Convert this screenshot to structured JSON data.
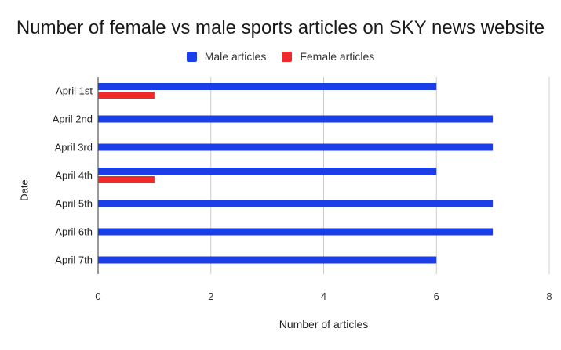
{
  "chart_data": {
    "type": "bar",
    "orientation": "horizontal",
    "title": "Number of female vs male sports articles on SKY news website",
    "xlabel": "Number of articles",
    "ylabel": "Date",
    "categories": [
      "April 1st",
      "April 2nd",
      "April 3rd",
      "April 4th",
      "April 5th",
      "April 6th",
      "April 7th"
    ],
    "series": [
      {
        "name": "Male articles",
        "color": "#1a3ee8",
        "values": [
          6,
          7,
          7,
          6,
          7,
          7,
          6
        ]
      },
      {
        "name": "Female articles",
        "color": "#ee2a2a",
        "values": [
          1,
          0,
          0,
          1,
          0,
          0,
          0
        ]
      }
    ],
    "xlim": [
      0,
      8
    ],
    "xticks": [
      0,
      2,
      4,
      6,
      8
    ],
    "grid": true,
    "legend_position": "top"
  }
}
